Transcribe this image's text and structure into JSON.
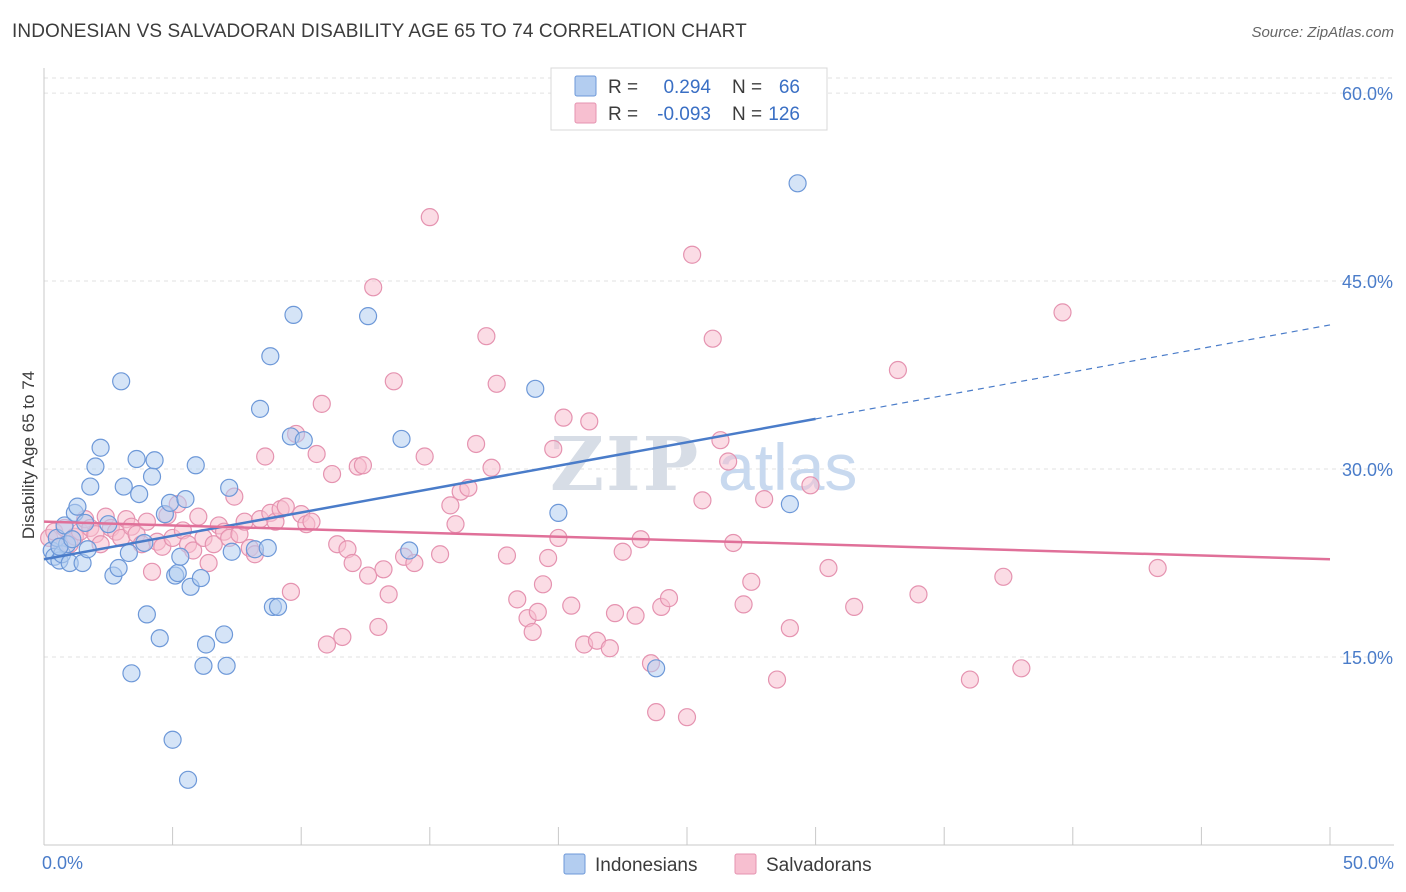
{
  "title": "INDONESIAN VS SALVADORAN DISABILITY AGE 65 TO 74 CORRELATION CHART",
  "source": "Source: ZipAtlas.com",
  "watermark": {
    "part1": "ZIP",
    "part2": "atlas"
  },
  "legend": {
    "rows": [
      {
        "r_label": "R =",
        "r_value": "0.294",
        "n_label": "N =",
        "n_value": "66",
        "color": "#4a7cc9",
        "fill": "#b3cdf0"
      },
      {
        "r_label": "R =",
        "r_value": "-0.093",
        "n_label": "N =",
        "n_value": "126",
        "color": "#e07099",
        "fill": "#f7bfd0"
      }
    ]
  },
  "bottom_legend": [
    {
      "label": "Indonesians",
      "fill": "#b3cdf0",
      "stroke": "#6d98d8"
    },
    {
      "label": "Salvadorans",
      "fill": "#f7bfd0",
      "stroke": "#e593b0"
    }
  ],
  "chart_data": {
    "type": "scatter",
    "xlabel": "",
    "ylabel": "Disability Age 65 to 74",
    "xlim": [
      0,
      50
    ],
    "ylim": [
      0,
      62
    ],
    "x_tick_labels": [
      "0.0%",
      "50.0%"
    ],
    "y_ticks": [
      15,
      30,
      45,
      60
    ],
    "y_tick_labels": [
      "15.0%",
      "30.0%",
      "45.0%",
      "60.0%"
    ],
    "grid": true,
    "series": [
      {
        "name": "Indonesians",
        "color": "#4a7cc9",
        "fill": "#b3cdf0",
        "trend": {
          "x0": 0,
          "y0": 22.8,
          "x1": 30,
          "y1": 34.0,
          "dash_x1": 50,
          "dash_y1": 41.5
        },
        "points": [
          [
            0.3,
            23.5
          ],
          [
            0.4,
            23.0
          ],
          [
            0.5,
            24.5
          ],
          [
            0.6,
            22.7
          ],
          [
            0.7,
            23.2
          ],
          [
            0.8,
            25.5
          ],
          [
            0.9,
            24.0
          ],
          [
            1.0,
            22.5
          ],
          [
            1.2,
            26.5
          ],
          [
            1.3,
            27.0
          ],
          [
            1.5,
            22.5
          ],
          [
            1.6,
            25.7
          ],
          [
            1.7,
            23.6
          ],
          [
            1.8,
            28.6
          ],
          [
            2.0,
            30.2
          ],
          [
            2.2,
            31.7
          ],
          [
            2.5,
            25.6
          ],
          [
            2.7,
            21.5
          ],
          [
            2.9,
            22.1
          ],
          [
            3.0,
            37.0
          ],
          [
            3.1,
            28.6
          ],
          [
            3.3,
            23.3
          ],
          [
            3.6,
            30.8
          ],
          [
            3.7,
            28.0
          ],
          [
            3.9,
            24.1
          ],
          [
            4.0,
            18.4
          ],
          [
            4.2,
            29.4
          ],
          [
            4.3,
            30.7
          ],
          [
            4.5,
            16.5
          ],
          [
            4.7,
            26.4
          ],
          [
            4.9,
            27.3
          ],
          [
            5.1,
            21.5
          ],
          [
            5.2,
            21.7
          ],
          [
            5.3,
            23.0
          ],
          [
            5.5,
            27.6
          ],
          [
            5.7,
            20.6
          ],
          [
            5.9,
            30.3
          ],
          [
            6.1,
            21.3
          ],
          [
            6.2,
            14.3
          ],
          [
            6.3,
            16.0
          ],
          [
            7.0,
            16.8
          ],
          [
            7.1,
            14.3
          ],
          [
            7.2,
            28.5
          ],
          [
            7.3,
            23.4
          ],
          [
            8.2,
            23.6
          ],
          [
            8.4,
            34.8
          ],
          [
            8.7,
            23.7
          ],
          [
            8.8,
            39.0
          ],
          [
            8.9,
            19.0
          ],
          [
            9.1,
            19.0
          ],
          [
            9.6,
            32.6
          ],
          [
            9.7,
            42.3
          ],
          [
            10.1,
            32.3
          ],
          [
            12.6,
            42.2
          ],
          [
            13.9,
            32.4
          ],
          [
            14.2,
            23.5
          ],
          [
            19.1,
            36.4
          ],
          [
            20.0,
            26.5
          ],
          [
            23.8,
            14.1
          ],
          [
            29.0,
            27.2
          ],
          [
            29.3,
            52.8
          ],
          [
            5.0,
            8.4
          ],
          [
            5.6,
            5.2
          ],
          [
            3.4,
            13.7
          ],
          [
            0.6,
            23.8
          ],
          [
            1.1,
            24.4
          ]
        ]
      },
      {
        "name": "Salvadorans",
        "color": "#e07099",
        "fill": "#f7bfd0",
        "trend": {
          "x0": 0,
          "y0": 25.8,
          "x1": 50,
          "y1": 22.8
        },
        "points": [
          [
            0.2,
            24.5
          ],
          [
            0.4,
            25.0
          ],
          [
            0.6,
            23.8
          ],
          [
            0.8,
            25.3
          ],
          [
            1.0,
            24.0
          ],
          [
            1.2,
            24.6
          ],
          [
            1.4,
            25.0
          ],
          [
            1.6,
            26.0
          ],
          [
            1.8,
            25.3
          ],
          [
            2.0,
            24.8
          ],
          [
            2.2,
            24.0
          ],
          [
            2.4,
            26.2
          ],
          [
            2.6,
            25.3
          ],
          [
            2.8,
            25.0
          ],
          [
            3.0,
            24.5
          ],
          [
            3.2,
            26.0
          ],
          [
            3.4,
            25.4
          ],
          [
            3.6,
            24.8
          ],
          [
            3.8,
            24.0
          ],
          [
            4.0,
            25.8
          ],
          [
            4.2,
            21.8
          ],
          [
            4.4,
            24.2
          ],
          [
            4.6,
            23.8
          ],
          [
            4.8,
            26.3
          ],
          [
            5.0,
            24.5
          ],
          [
            5.2,
            27.2
          ],
          [
            5.4,
            25.1
          ],
          [
            5.6,
            24.0
          ],
          [
            5.8,
            23.5
          ],
          [
            6.0,
            26.2
          ],
          [
            6.2,
            24.5
          ],
          [
            6.4,
            22.5
          ],
          [
            6.6,
            24.0
          ],
          [
            6.8,
            25.5
          ],
          [
            7.0,
            25.0
          ],
          [
            7.2,
            24.5
          ],
          [
            7.4,
            27.8
          ],
          [
            7.6,
            24.8
          ],
          [
            7.8,
            25.8
          ],
          [
            8.0,
            23.7
          ],
          [
            8.2,
            23.2
          ],
          [
            8.4,
            26.0
          ],
          [
            8.6,
            31.0
          ],
          [
            8.8,
            26.5
          ],
          [
            9.0,
            25.8
          ],
          [
            9.2,
            26.8
          ],
          [
            9.4,
            27.0
          ],
          [
            9.6,
            20.2
          ],
          [
            9.8,
            32.8
          ],
          [
            10.0,
            26.4
          ],
          [
            10.2,
            25.6
          ],
          [
            10.4,
            25.8
          ],
          [
            10.6,
            31.2
          ],
          [
            10.8,
            35.2
          ],
          [
            11.0,
            16.0
          ],
          [
            11.2,
            29.6
          ],
          [
            11.4,
            24.0
          ],
          [
            11.6,
            16.6
          ],
          [
            11.8,
            23.6
          ],
          [
            12.0,
            22.5
          ],
          [
            12.2,
            30.2
          ],
          [
            12.4,
            30.3
          ],
          [
            12.6,
            21.5
          ],
          [
            12.8,
            44.5
          ],
          [
            13.0,
            17.4
          ],
          [
            13.2,
            22.0
          ],
          [
            13.4,
            20.0
          ],
          [
            13.6,
            37.0
          ],
          [
            14.0,
            23.0
          ],
          [
            14.4,
            22.5
          ],
          [
            14.8,
            31.0
          ],
          [
            15.0,
            50.1
          ],
          [
            15.4,
            23.2
          ],
          [
            15.8,
            27.1
          ],
          [
            16.0,
            25.6
          ],
          [
            16.2,
            28.2
          ],
          [
            16.5,
            28.5
          ],
          [
            16.8,
            32.0
          ],
          [
            17.2,
            40.6
          ],
          [
            17.6,
            36.8
          ],
          [
            17.4,
            30.1
          ],
          [
            18.0,
            23.1
          ],
          [
            18.4,
            19.6
          ],
          [
            18.8,
            18.1
          ],
          [
            19.0,
            17.0
          ],
          [
            19.2,
            18.6
          ],
          [
            19.4,
            20.8
          ],
          [
            19.6,
            22.9
          ],
          [
            19.8,
            31.6
          ],
          [
            20.0,
            24.5
          ],
          [
            20.2,
            34.1
          ],
          [
            20.5,
            19.1
          ],
          [
            21.0,
            16.0
          ],
          [
            21.2,
            33.8
          ],
          [
            21.5,
            16.3
          ],
          [
            22.0,
            15.7
          ],
          [
            22.2,
            18.5
          ],
          [
            22.5,
            23.4
          ],
          [
            23.0,
            18.3
          ],
          [
            23.2,
            24.4
          ],
          [
            23.6,
            14.5
          ],
          [
            23.8,
            10.6
          ],
          [
            24.0,
            19.0
          ],
          [
            24.3,
            19.7
          ],
          [
            25.0,
            10.2
          ],
          [
            25.2,
            47.1
          ],
          [
            25.6,
            27.5
          ],
          [
            26.0,
            40.4
          ],
          [
            26.3,
            32.3
          ],
          [
            26.6,
            30.6
          ],
          [
            26.8,
            24.1
          ],
          [
            27.2,
            19.2
          ],
          [
            27.5,
            21.0
          ],
          [
            28.0,
            27.6
          ],
          [
            28.5,
            13.2
          ],
          [
            29.0,
            17.3
          ],
          [
            29.8,
            28.7
          ],
          [
            30.5,
            22.1
          ],
          [
            31.5,
            19.0
          ],
          [
            33.2,
            37.9
          ],
          [
            34.0,
            20.0
          ],
          [
            36.0,
            13.2
          ],
          [
            37.3,
            21.4
          ],
          [
            38.0,
            14.1
          ],
          [
            39.6,
            42.5
          ],
          [
            43.3,
            22.1
          ]
        ]
      }
    ]
  }
}
